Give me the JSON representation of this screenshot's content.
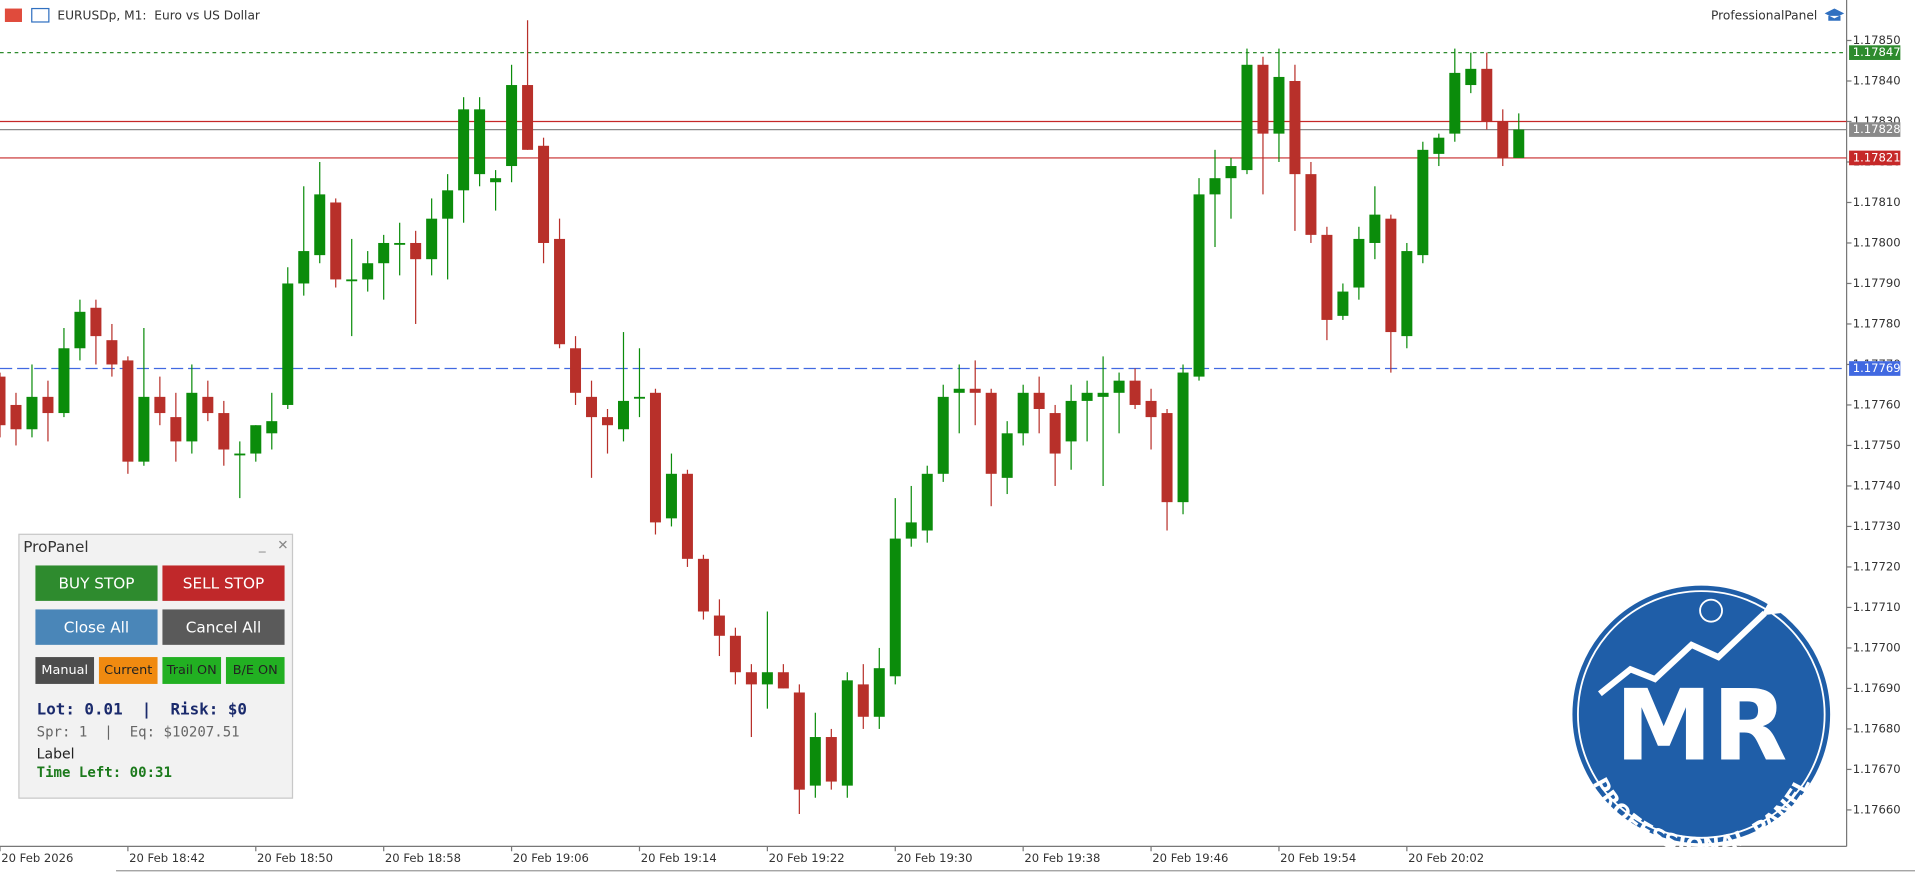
{
  "header": {
    "symbol": "EURUSDp, M1:  Euro vs US Dollar",
    "panel_name": "ProfessionalPanel"
  },
  "chart_data": {
    "type": "candlestick",
    "categories": [
      "20 Feb 2026",
      null,
      null,
      null,
      null,
      null,
      null,
      null,
      "20 Feb 18:42",
      null,
      null,
      null,
      null,
      null,
      null,
      null,
      "20 Feb 18:50",
      null,
      null,
      null,
      null,
      null,
      null,
      null,
      "20 Feb 18:58",
      null,
      null,
      null,
      null,
      null,
      null,
      null,
      "20 Feb 19:06",
      null,
      null,
      null,
      null,
      null,
      null,
      null,
      "20 Feb 19:14",
      null,
      null,
      null,
      null,
      null,
      null,
      null,
      "20 Feb 19:22",
      null,
      null,
      null,
      null,
      null,
      null,
      null,
      "20 Feb 19:30",
      null,
      null,
      null,
      null,
      null,
      null,
      null,
      "20 Feb 19:38",
      null,
      null,
      null,
      null,
      null,
      null,
      null,
      "20 Feb 19:46",
      null,
      null,
      null,
      null,
      null,
      null,
      null,
      "20 Feb 19:54",
      null,
      null,
      null,
      null,
      null,
      null,
      null,
      "20 Feb 20:02",
      null,
      null,
      null,
      null,
      null,
      null,
      null
    ],
    "open": [
      1.17767,
      1.1776,
      1.17754,
      1.17762,
      1.17758,
      1.17774,
      1.17784,
      1.17776,
      1.17771,
      1.17746,
      1.17762,
      1.17757,
      1.17751,
      1.17762,
      1.17758,
      1.17748,
      1.17748,
      1.17753,
      1.1776,
      1.1779,
      1.17797,
      1.1781,
      1.17791,
      1.17791,
      1.17795,
      1.178,
      1.178,
      1.17796,
      1.17806,
      1.17813,
      1.17817,
      1.17815,
      1.17819,
      1.17839,
      1.17824,
      1.17801,
      1.17774,
      1.17762,
      1.17757,
      1.17754,
      1.17762,
      1.17763,
      1.17732,
      1.17743,
      1.17722,
      1.17708,
      1.17703,
      1.17694,
      1.17691,
      1.17694,
      1.17689,
      1.17666,
      1.17678,
      1.17666,
      1.17691,
      1.17683,
      1.17693,
      1.17727,
      1.17729,
      1.17743,
      1.17763,
      1.17764,
      1.17763,
      1.17742,
      1.17753,
      1.17763,
      1.17758,
      1.17751,
      1.17761,
      1.17762,
      1.17763,
      1.17766,
      1.17761,
      1.17758,
      1.17736,
      1.17767,
      1.17812,
      1.17816,
      1.17818,
      1.17844,
      1.17827,
      1.1784,
      1.17817,
      1.17802,
      1.17782,
      1.17789,
      1.178,
      1.17806,
      1.17777,
      1.17797,
      1.17822,
      1.17827,
      1.17839,
      1.17843,
      1.1783,
      1.17821
    ],
    "high": [
      1.17768,
      1.17763,
      1.1777,
      1.17766,
      1.17779,
      1.17786,
      1.17786,
      1.1778,
      1.17772,
      1.17779,
      1.17767,
      1.17763,
      1.1777,
      1.17766,
      1.17761,
      1.17751,
      1.17755,
      1.17763,
      1.17794,
      1.17814,
      1.1782,
      1.17811,
      1.17801,
      1.17798,
      1.17802,
      1.17805,
      1.17803,
      1.17811,
      1.17817,
      1.17836,
      1.17836,
      1.17818,
      1.17844,
      1.17855,
      1.17826,
      1.17806,
      1.17777,
      1.17766,
      1.17759,
      1.17778,
      1.17774,
      1.17764,
      1.17748,
      1.17744,
      1.17723,
      1.17712,
      1.17705,
      1.17696,
      1.17709,
      1.17696,
      1.17691,
      1.17684,
      1.1768,
      1.17694,
      1.17696,
      1.177,
      1.17737,
      1.1774,
      1.17745,
      1.17765,
      1.1777,
      1.17771,
      1.17764,
      1.17756,
      1.17765,
      1.17767,
      1.1776,
      1.17765,
      1.17766,
      1.17772,
      1.17768,
      1.17769,
      1.17764,
      1.17759,
      1.1777,
      1.17816,
      1.17823,
      1.17821,
      1.17848,
      1.17846,
      1.17848,
      1.17844,
      1.1782,
      1.17804,
      1.1779,
      1.17804,
      1.17814,
      1.17807,
      1.178,
      1.17825,
      1.17827,
      1.17848,
      1.17847,
      1.17847,
      1.17833,
      1.17832
    ],
    "low": [
      1.17752,
      1.1775,
      1.17752,
      1.17751,
      1.17757,
      1.17771,
      1.1777,
      1.17767,
      1.17743,
      1.17745,
      1.17755,
      1.17746,
      1.17748,
      1.17756,
      1.17745,
      1.17737,
      1.17746,
      1.17749,
      1.17759,
      1.17787,
      1.17795,
      1.17789,
      1.17777,
      1.17788,
      1.17786,
      1.17792,
      1.1778,
      1.17792,
      1.17791,
      1.17805,
      1.17814,
      1.17808,
      1.17815,
      1.17823,
      1.17795,
      1.17774,
      1.1776,
      1.17742,
      1.17748,
      1.17751,
      1.17757,
      1.17728,
      1.1773,
      1.1772,
      1.17707,
      1.17698,
      1.17691,
      1.17678,
      1.17685,
      1.1769,
      1.17659,
      1.17663,
      1.17665,
      1.17663,
      1.1768,
      1.1768,
      1.17691,
      1.17725,
      1.17726,
      1.17741,
      1.17753,
      1.17755,
      1.17735,
      1.17738,
      1.1775,
      1.17753,
      1.1774,
      1.17744,
      1.17751,
      1.1774,
      1.17753,
      1.17759,
      1.17749,
      1.17729,
      1.17733,
      1.17766,
      1.17799,
      1.17806,
      1.17817,
      1.17812,
      1.1782,
      1.17803,
      1.178,
      1.17776,
      1.17781,
      1.17786,
      1.17796,
      1.17768,
      1.17774,
      1.17795,
      1.17819,
      1.17825,
      1.17837,
      1.17828,
      1.17819,
      1.17821
    ],
    "close": [
      1.17755,
      1.17754,
      1.17762,
      1.17758,
      1.17774,
      1.17783,
      1.17777,
      1.1777,
      1.17746,
      1.17762,
      1.17758,
      1.17751,
      1.17763,
      1.17758,
      1.17749,
      1.17748,
      1.17755,
      1.17756,
      1.1779,
      1.17798,
      1.17812,
      1.17791,
      1.17791,
      1.17795,
      1.178,
      1.178,
      1.17796,
      1.17806,
      1.17813,
      1.17833,
      1.17833,
      1.17816,
      1.17839,
      1.17823,
      1.178,
      1.17775,
      1.17763,
      1.17757,
      1.17755,
      1.17761,
      1.17762,
      1.17731,
      1.17743,
      1.17722,
      1.17709,
      1.17703,
      1.17694,
      1.17691,
      1.17694,
      1.1769,
      1.17665,
      1.17678,
      1.17667,
      1.17692,
      1.17683,
      1.17695,
      1.17727,
      1.17731,
      1.17743,
      1.17762,
      1.17764,
      1.17763,
      1.17743,
      1.17753,
      1.17763,
      1.17759,
      1.17748,
      1.17761,
      1.17763,
      1.17763,
      1.17766,
      1.1776,
      1.17757,
      1.17736,
      1.17768,
      1.17812,
      1.17816,
      1.17819,
      1.17844,
      1.17827,
      1.17841,
      1.17817,
      1.17802,
      1.17781,
      1.17788,
      1.17801,
      1.17807,
      1.17778,
      1.17798,
      1.17823,
      1.17826,
      1.17842,
      1.17843,
      1.1783,
      1.17821,
      1.17828
    ],
    "up_color": "#0b8c0b",
    "down_color": "#b8302a",
    "ylim": [
      1.17651,
      1.1786
    ],
    "yticks": [
      {
        "value": 1.1785,
        "label": "1.17850"
      },
      {
        "value": 1.1784,
        "label": "1.17840"
      },
      {
        "value": 1.1783,
        "label": "1.17830"
      },
      {
        "value": 1.1782,
        "label": "1.17820"
      },
      {
        "value": 1.1781,
        "label": "1.17810"
      },
      {
        "value": 1.178,
        "label": "1.17800"
      },
      {
        "value": 1.1779,
        "label": "1.17790"
      },
      {
        "value": 1.1778,
        "label": "1.17780"
      },
      {
        "value": 1.1777,
        "label": "1.17770"
      },
      {
        "value": 1.1776,
        "label": "1.17760"
      },
      {
        "value": 1.1775,
        "label": "1.17750"
      },
      {
        "value": 1.1774,
        "label": "1.17740"
      },
      {
        "value": 1.1773,
        "label": "1.17730"
      },
      {
        "value": 1.1772,
        "label": "1.17720"
      },
      {
        "value": 1.1771,
        "label": "1.17710"
      },
      {
        "value": 1.177,
        "label": "1.17700"
      },
      {
        "value": 1.1769,
        "label": "1.17690"
      },
      {
        "value": 1.1768,
        "label": "1.17680"
      },
      {
        "value": 1.1767,
        "label": "1.17670"
      },
      {
        "value": 1.1766,
        "label": "1.17660"
      }
    ],
    "levels": [
      {
        "value": 1.17769,
        "label": 1.17769,
        "color": "#4169e1",
        "style": "dashed"
      },
      {
        "value": 1.17847,
        "label": 1.17847,
        "color": "#2e8b2e",
        "style": "dotted"
      },
      {
        "value": 1.1783,
        "color": "#c62828",
        "style": "solid"
      },
      {
        "value": 1.17821,
        "label": 1.17821,
        "color": "#c62828",
        "style": "solid"
      },
      {
        "value": 1.17828,
        "label": 1.17828,
        "color": "#8a8a8a",
        "style": "solid"
      }
    ]
  },
  "panel": {
    "title": "ProPanel",
    "buy": "BUY STOP",
    "sell": "SELL STOP",
    "close_all": "Close All",
    "cancel_all": "Cancel All",
    "mode": "Manual",
    "source": "Current",
    "trail": "Trail ON",
    "breakeven": "B/E ON",
    "lot": "Lot: 0.01",
    "sep": "|",
    "risk": "Risk: $0",
    "spread": "Spr: 1",
    "equity": "Eq: $10207.51",
    "label": "Label",
    "time_left": "Time Left: 00:31"
  },
  "logo": {
    "letters": "MR",
    "caption": "PROFESSIONAL PANEL"
  }
}
